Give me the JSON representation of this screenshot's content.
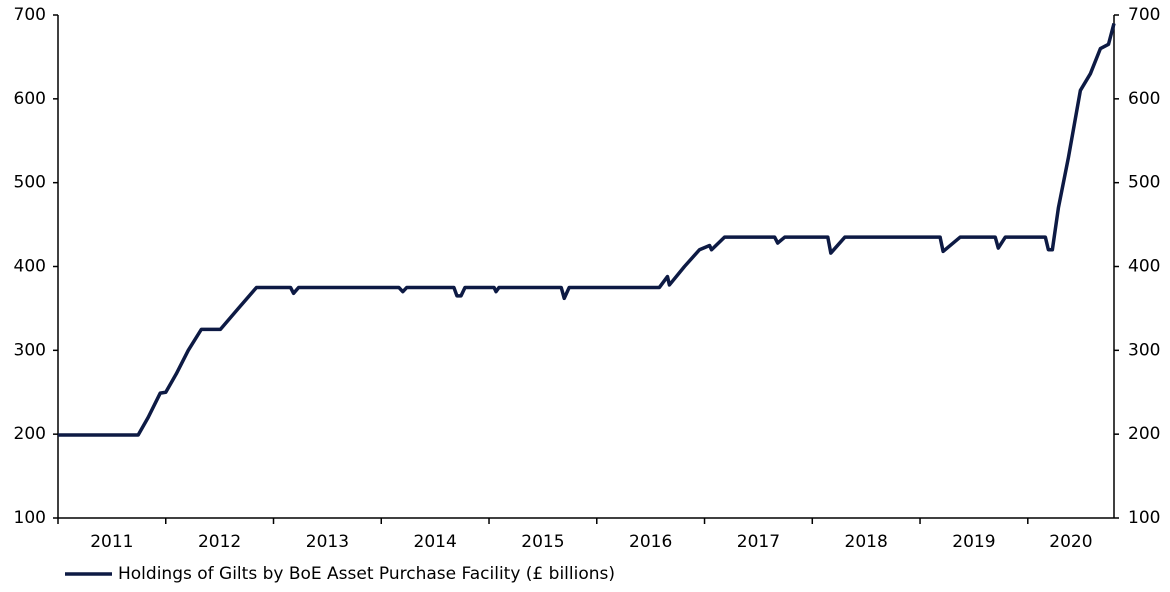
{
  "chart_data": {
    "type": "line",
    "x": [
      2011.0,
      2011.744,
      2011.837,
      2011.949,
      2012.0,
      2012.098,
      2012.209,
      2012.33,
      2012.507,
      2012.674,
      2012.842,
      2013.158,
      2013.186,
      2013.233,
      2014.163,
      2014.2,
      2014.237,
      2014.674,
      2014.702,
      2014.74,
      2014.777,
      2015.047,
      2015.065,
      2015.093,
      2015.67,
      2015.698,
      2015.744,
      2016.581,
      2016.656,
      2016.674,
      2016.814,
      2016.953,
      2017.047,
      2017.065,
      2017.186,
      2017.651,
      2017.679,
      2017.744,
      2018.144,
      2018.172,
      2018.302,
      2019.186,
      2019.214,
      2019.372,
      2019.698,
      2019.726,
      2019.791,
      2020.163,
      2020.191,
      2020.228,
      2020.284,
      2020.377,
      2020.488,
      2020.581,
      2020.674,
      2020.749,
      2020.8
    ],
    "series": [
      {
        "name": "Holdings of Gilts by BoE Asset Purchase Facility (£ billions)",
        "color": "#0d1a44",
        "values": [
          199,
          199,
          220,
          249,
          250,
          272,
          300,
          325,
          325,
          350,
          375,
          375,
          368,
          375,
          375,
          370,
          375,
          375,
          365,
          365,
          375,
          375,
          370,
          375,
          375,
          362,
          375,
          375,
          388,
          378,
          400,
          420,
          425,
          420,
          435,
          435,
          428,
          435,
          435,
          416,
          435,
          435,
          418,
          435,
          435,
          422,
          435,
          435,
          420,
          420,
          470,
          530,
          610,
          630,
          660,
          665,
          690
        ]
      }
    ],
    "xlim": [
      2011,
      2020.8
    ],
    "xticks": [
      2011,
      2012,
      2013,
      2014,
      2015,
      2016,
      2017,
      2018,
      2019,
      2020
    ],
    "ylim": [
      100,
      700
    ],
    "yticks": [
      100,
      200,
      300,
      400,
      500,
      600,
      700
    ],
    "y2lim": [
      100,
      700
    ],
    "y2ticks": [
      100,
      200,
      300,
      400,
      500,
      600,
      700
    ],
    "legend": "bottom-left"
  }
}
